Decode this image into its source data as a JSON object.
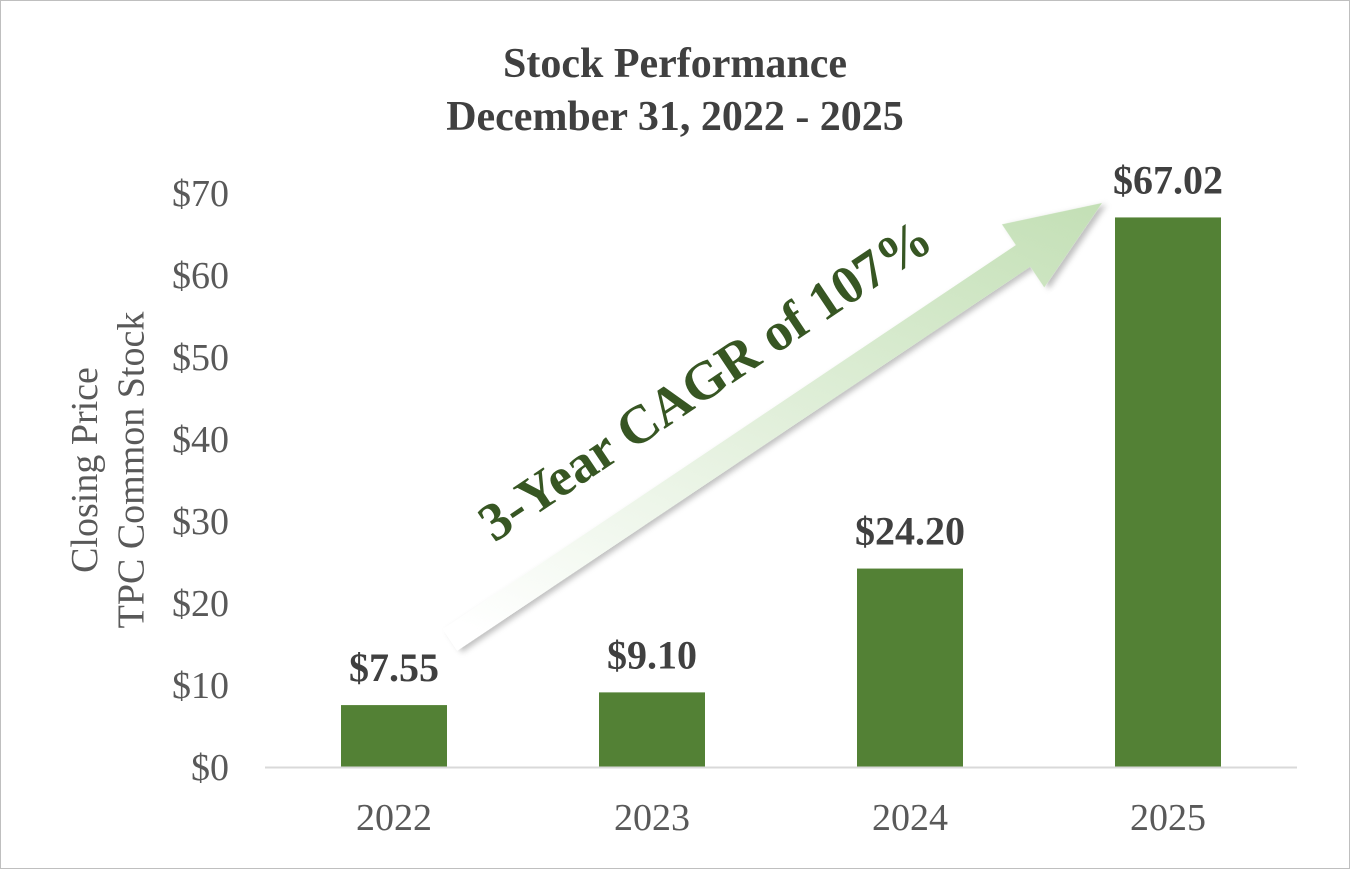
{
  "chart_data": {
    "type": "bar",
    "title": [
      "Stock Performance",
      "December 31, 2022 - 2025"
    ],
    "ylabel": [
      "Closing Price",
      "TPC Common Stock"
    ],
    "categories": [
      "2022",
      "2023",
      "2024",
      "2025"
    ],
    "values": [
      7.55,
      9.1,
      24.2,
      67.02
    ],
    "data_labels": [
      "$7.55",
      "$9.10",
      "$24.20",
      "$67.02"
    ],
    "ylim": [
      0,
      70
    ],
    "yticks": [
      0,
      10,
      20,
      30,
      40,
      50,
      60,
      70
    ],
    "ytick_labels": [
      "$0",
      "$10",
      "$20",
      "$30",
      "$40",
      "$50",
      "$60",
      "$70"
    ],
    "grid": false,
    "legend": "none",
    "annotation": {
      "text": "3-Year CAGR of 107%",
      "type": "arrow",
      "from_category": "2022",
      "to_category": "2025"
    },
    "colors": {
      "bar": "#538135",
      "arrow": "#b5d8a4",
      "annotation_text": "#375623",
      "text": "#404040",
      "axis": "#d9d9d9"
    }
  }
}
